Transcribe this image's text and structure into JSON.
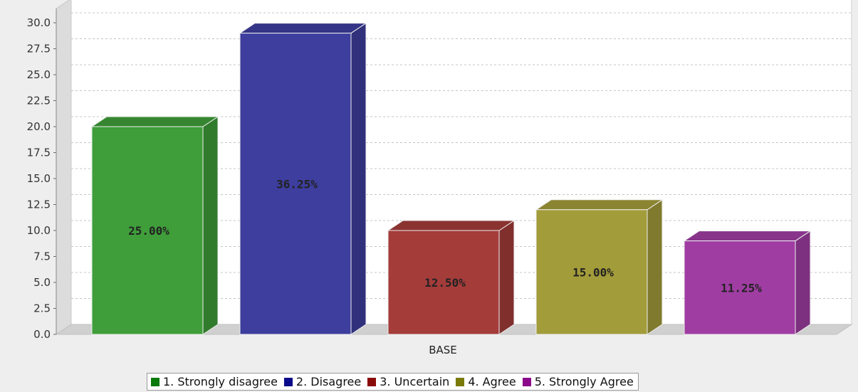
{
  "chart_data": {
    "type": "bar",
    "categories": [
      "BASE"
    ],
    "series": [
      {
        "name": "1. Strongly disagree",
        "value": 20.0,
        "label": "25.00%",
        "color": "#3f9e3a"
      },
      {
        "name": "2. Disagree",
        "value": 29.0,
        "label": "36.25%",
        "color": "#3d3e9e"
      },
      {
        "name": "3. Uncertain",
        "value": 10.0,
        "label": "12.50%",
        "color": "#a43c3a"
      },
      {
        "name": "4. Agree",
        "value": 12.0,
        "label": "15.00%",
        "color": "#a39c3a"
      },
      {
        "name": "5. Strongly Agree",
        "value": 9.0,
        "label": "11.25%",
        "color": "#a03da3"
      }
    ],
    "legend_swatch_colors": [
      "#0a7a0a",
      "#0a0a8a",
      "#8a0a0a",
      "#7a7a0a",
      "#8a0a8a"
    ],
    "yticks": [
      "0.0",
      "2.5",
      "5.0",
      "7.5",
      "10.0",
      "12.5",
      "15.0",
      "17.5",
      "20.0",
      "22.5",
      "25.0",
      "27.5",
      "30.0"
    ],
    "ylim": [
      0,
      30
    ],
    "grid": true,
    "legend_position": "bottom"
  }
}
